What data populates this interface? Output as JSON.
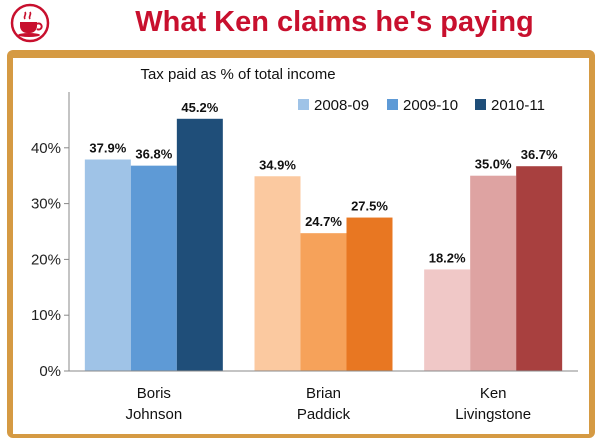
{
  "header": {
    "title": "What Ken claims he's paying",
    "logo_icon": "teacup-logo-icon"
  },
  "chart_data": {
    "type": "bar",
    "title": "Tax paid as % of total income",
    "xlabel": "",
    "ylabel": "",
    "ylim": [
      0,
      50
    ],
    "yticks": [
      0,
      10,
      20,
      30,
      40
    ],
    "ytick_labels": [
      "0%",
      "10%",
      "20%",
      "30%",
      "40%"
    ],
    "categories": [
      "Boris Johnson",
      "Brian Paddick",
      "Ken Livingstone"
    ],
    "category_lines": [
      [
        "Boris",
        "Johnson"
      ],
      [
        "Brian",
        "Paddick"
      ],
      [
        "Ken",
        "Livingstone"
      ]
    ],
    "series": [
      {
        "name": "2008-09",
        "values": [
          37.9,
          34.9,
          18.2
        ],
        "labels": [
          "37.9%",
          "34.9%",
          "18.2%"
        ]
      },
      {
        "name": "2009-10",
        "values": [
          36.8,
          24.7,
          35.0
        ],
        "labels": [
          "36.8%",
          "24.7%",
          "35.0%"
        ]
      },
      {
        "name": "2010-11",
        "values": [
          45.2,
          27.5,
          36.7
        ],
        "labels": [
          "45.2%",
          "27.5%",
          "36.7%"
        ]
      }
    ],
    "colors": [
      [
        "#9fc3e7",
        "#5e9ad6",
        "#1f4e79"
      ],
      [
        "#fbc9a0",
        "#f6a25a",
        "#e87722"
      ],
      [
        "#f0c8c7",
        "#dea3a2",
        "#a8403f"
      ]
    ],
    "legend_colors": [
      "#9fc3e7",
      "#5e9ad6",
      "#1f4e79"
    ],
    "legend_position": "top-right",
    "grid": false
  }
}
